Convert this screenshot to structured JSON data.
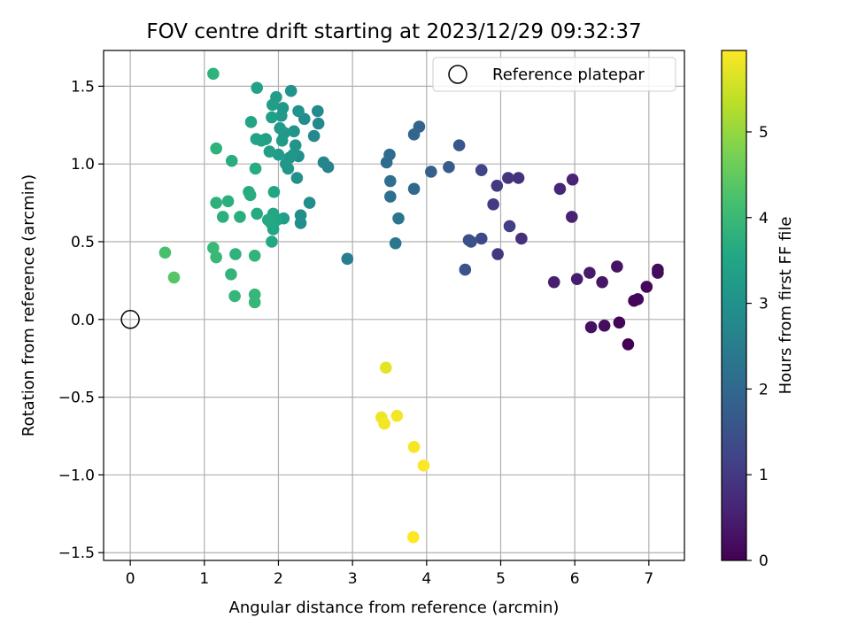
{
  "chart_data": {
    "type": "scatter",
    "title": "FOV centre drift starting at 2023/12/29 09:32:37",
    "xlabel": "Angular distance from reference (arcmin)",
    "ylabel": "Rotation from reference (arcmin)",
    "xlim": [
      -0.36,
      7.48
    ],
    "ylim": [
      -1.55,
      1.73
    ],
    "xticks": [
      0,
      1,
      2,
      3,
      4,
      5,
      6,
      7
    ],
    "xtick_labels": [
      "0",
      "1",
      "2",
      "3",
      "4",
      "5",
      "6",
      "7"
    ],
    "yticks": [
      -1.5,
      -1.0,
      -0.5,
      0.0,
      0.5,
      1.0,
      1.5
    ],
    "ytick_labels": [
      "−1.5",
      "−1.0",
      "−0.5",
      "0.0",
      "0.5",
      "1.0",
      "1.5"
    ],
    "grid": true,
    "legend": {
      "position": "top-right",
      "entries": [
        "Reference platepar"
      ]
    },
    "reference": {
      "x": 0.0,
      "y": 0.0,
      "label": "Reference platepar"
    },
    "colorbar": {
      "label": "Hours from first FF file",
      "range": [
        0,
        5.95
      ],
      "ticks": [
        0,
        1,
        2,
        3,
        4,
        5
      ],
      "tick_labels": [
        "0",
        "1",
        "2",
        "3",
        "4",
        "5"
      ],
      "colormap": "viridis"
    },
    "points": [
      [
        6.72,
        -0.16,
        0.0
      ],
      [
        6.6,
        -0.02,
        0.05
      ],
      [
        6.8,
        0.12,
        0.08
      ],
      [
        6.85,
        0.13,
        0.1
      ],
      [
        6.97,
        0.21,
        0.12
      ],
      [
        7.12,
        0.32,
        0.15
      ],
      [
        7.12,
        0.3,
        0.18
      ],
      [
        6.4,
        -0.04,
        0.2
      ],
      [
        6.22,
        -0.05,
        0.25
      ],
      [
        6.57,
        0.34,
        0.3
      ],
      [
        6.37,
        0.24,
        0.35
      ],
      [
        6.2,
        0.3,
        0.4
      ],
      [
        6.03,
        0.26,
        0.45
      ],
      [
        5.72,
        0.24,
        0.5
      ],
      [
        5.96,
        0.66,
        0.55
      ],
      [
        5.97,
        0.9,
        0.6
      ],
      [
        5.8,
        0.84,
        0.65
      ],
      [
        5.28,
        0.52,
        0.8
      ],
      [
        5.24,
        0.91,
        0.85
      ],
      [
        5.1,
        0.91,
        0.9
      ],
      [
        4.96,
        0.42,
        0.95
      ],
      [
        4.95,
        0.86,
        1.0
      ],
      [
        4.9,
        0.74,
        1.05
      ],
      [
        5.12,
        0.6,
        1.1
      ],
      [
        4.74,
        0.96,
        1.2
      ],
      [
        4.74,
        0.52,
        1.3
      ],
      [
        4.57,
        0.51,
        1.4
      ],
      [
        4.6,
        0.5,
        1.45
      ],
      [
        4.52,
        0.32,
        1.5
      ],
      [
        4.44,
        1.12,
        1.6
      ],
      [
        4.3,
        0.98,
        1.7
      ],
      [
        4.06,
        0.95,
        1.8
      ],
      [
        3.9,
        1.24,
        1.9
      ],
      [
        3.83,
        1.19,
        1.95
      ],
      [
        3.83,
        0.84,
        2.0
      ],
      [
        3.5,
        1.06,
        2.05
      ],
      [
        3.46,
        1.01,
        2.1
      ],
      [
        3.51,
        0.89,
        2.15
      ],
      [
        3.51,
        0.79,
        2.2
      ],
      [
        3.62,
        0.65,
        2.3
      ],
      [
        3.58,
        0.49,
        2.35
      ],
      [
        2.93,
        0.39,
        2.5
      ],
      [
        2.67,
        0.98,
        2.65
      ],
      [
        2.61,
        1.01,
        2.7
      ],
      [
        2.48,
        1.18,
        2.75
      ],
      [
        2.54,
        1.26,
        2.8
      ],
      [
        2.53,
        1.34,
        2.82
      ],
      [
        2.35,
        1.29,
        2.85
      ],
      [
        2.42,
        0.75,
        2.87
      ],
      [
        2.3,
        0.67,
        2.9
      ],
      [
        2.3,
        0.62,
        2.92
      ],
      [
        2.27,
        1.05,
        2.95
      ],
      [
        2.25,
        0.91,
        2.97
      ],
      [
        2.27,
        1.34,
        3.0
      ],
      [
        2.17,
        1.47,
        3.02
      ],
      [
        2.21,
        1.21,
        3.04
      ],
      [
        2.23,
        1.12,
        3.06
      ],
      [
        2.15,
        1.04,
        3.08
      ],
      [
        2.13,
        0.97,
        3.1
      ],
      [
        2.1,
        1.0,
        3.12
      ],
      [
        2.2,
        1.06,
        3.14
      ],
      [
        2.08,
        1.2,
        3.16
      ],
      [
        2.06,
        1.36,
        3.18
      ],
      [
        2.04,
        1.31,
        3.2
      ],
      [
        2.02,
        1.23,
        3.22
      ],
      [
        2.05,
        1.15,
        3.24
      ],
      [
        2.0,
        1.06,
        3.26
      ],
      [
        2.07,
        0.65,
        3.28
      ],
      [
        1.97,
        1.43,
        3.3
      ],
      [
        1.92,
        1.38,
        3.32
      ],
      [
        1.91,
        1.3,
        3.34
      ],
      [
        1.88,
        1.08,
        3.36
      ],
      [
        1.83,
        1.16,
        3.38
      ],
      [
        1.77,
        1.15,
        3.4
      ],
      [
        1.7,
        1.16,
        3.42
      ],
      [
        1.71,
        1.49,
        3.44
      ],
      [
        1.63,
        1.27,
        3.46
      ],
      [
        1.94,
        0.82,
        3.48
      ],
      [
        1.98,
        0.64,
        3.5
      ],
      [
        1.93,
        0.68,
        3.52
      ],
      [
        1.93,
        0.58,
        3.54
      ],
      [
        1.9,
        0.62,
        3.56
      ],
      [
        1.91,
        0.5,
        3.58
      ],
      [
        1.86,
        0.64,
        3.6
      ],
      [
        1.71,
        0.68,
        3.62
      ],
      [
        1.69,
        0.97,
        3.64
      ],
      [
        1.6,
        0.82,
        3.66
      ],
      [
        1.62,
        0.8,
        3.68
      ],
      [
        1.37,
        1.02,
        3.7
      ],
      [
        1.48,
        0.66,
        3.72
      ],
      [
        1.32,
        0.76,
        3.74
      ],
      [
        1.25,
        0.66,
        3.76
      ],
      [
        1.16,
        0.75,
        3.78
      ],
      [
        1.16,
        1.1,
        3.8
      ],
      [
        1.12,
        1.58,
        3.82
      ],
      [
        1.42,
        0.42,
        3.84
      ],
      [
        1.68,
        0.41,
        3.86
      ],
      [
        1.36,
        0.29,
        3.88
      ],
      [
        1.41,
        0.15,
        3.9
      ],
      [
        1.68,
        0.16,
        3.92
      ],
      [
        1.68,
        0.11,
        3.94
      ],
      [
        1.16,
        0.4,
        3.96
      ],
      [
        1.12,
        0.46,
        3.98
      ],
      [
        0.47,
        0.43,
        4.2
      ],
      [
        0.59,
        0.27,
        4.35
      ],
      [
        3.45,
        -0.31,
        5.7
      ],
      [
        3.39,
        -0.63,
        5.8
      ],
      [
        3.43,
        -0.67,
        5.85
      ],
      [
        3.6,
        -0.62,
        5.88
      ],
      [
        3.83,
        -0.82,
        5.9
      ],
      [
        3.96,
        -0.94,
        5.92
      ],
      [
        3.82,
        -1.4,
        5.95
      ]
    ]
  }
}
